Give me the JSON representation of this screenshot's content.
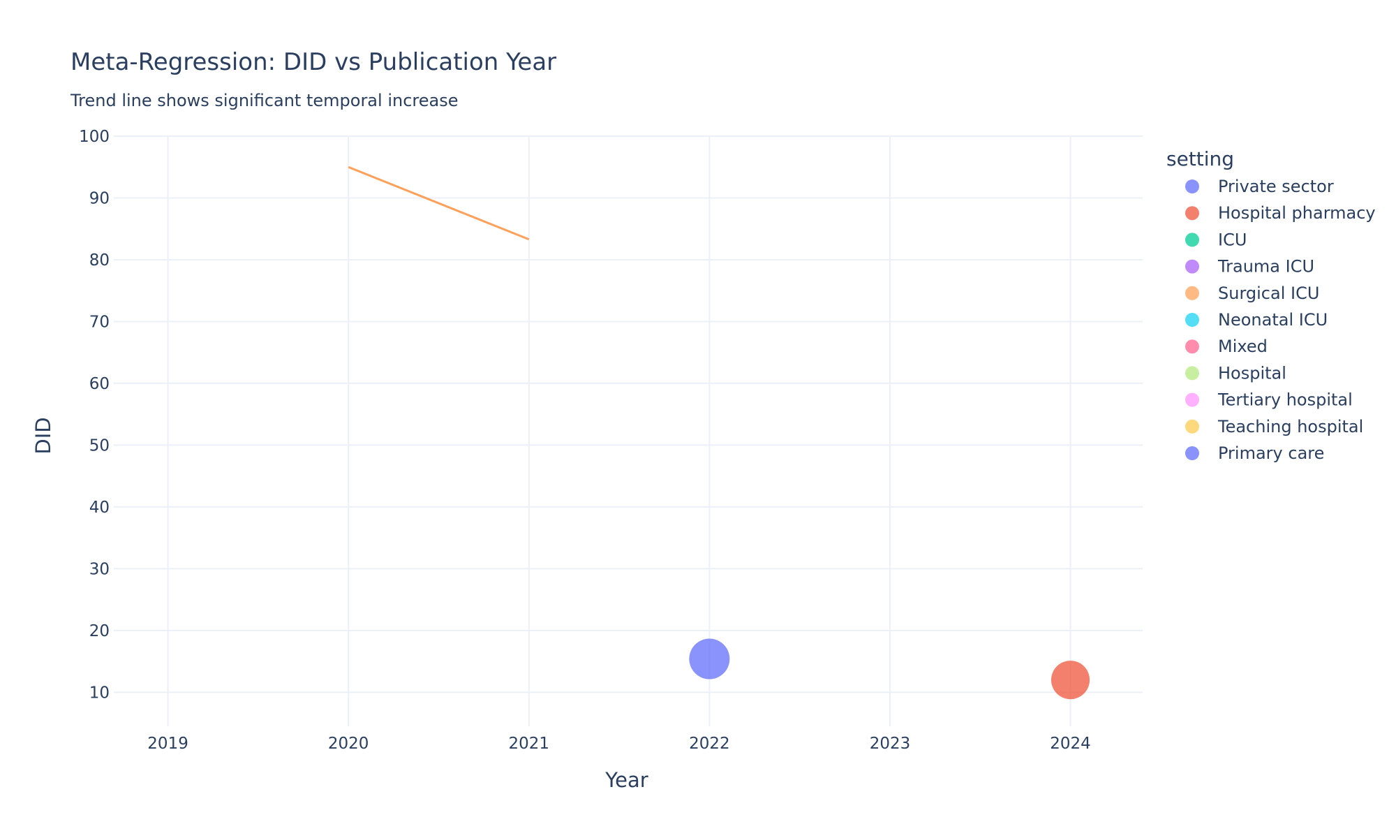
{
  "chart_data": {
    "type": "scatter",
    "title": "Meta-Regression: DID vs Publication Year",
    "subtitle": "Trend line shows significant temporal increase",
    "xlabel": "Year",
    "ylabel": "DID",
    "xlim": [
      2018.7,
      2024.4
    ],
    "ylim": [
      4.5,
      100
    ],
    "x_ticks": [
      2019,
      2020,
      2021,
      2022,
      2023,
      2024
    ],
    "y_ticks": [
      10,
      20,
      30,
      40,
      50,
      60,
      70,
      80,
      90,
      100
    ],
    "grid": true,
    "legend_title": "setting",
    "legend_position": "right",
    "legend": [
      {
        "name": "Private sector",
        "color": "#636efa"
      },
      {
        "name": "Hospital pharmacy",
        "color": "#EF553B"
      },
      {
        "name": "ICU",
        "color": "#00cc96"
      },
      {
        "name": "Trauma ICU",
        "color": "#ab63fa"
      },
      {
        "name": "Surgical ICU",
        "color": "#FFA15A"
      },
      {
        "name": "Neonatal ICU",
        "color": "#19d3f3"
      },
      {
        "name": "Mixed",
        "color": "#FF6692"
      },
      {
        "name": "Hospital",
        "color": "#B6E880"
      },
      {
        "name": "Tertiary hospital",
        "color": "#FF97FF"
      },
      {
        "name": "Teaching hospital",
        "color": "#FECB52"
      },
      {
        "name": "Primary care",
        "color": "#636efa"
      }
    ],
    "points": [
      {
        "x": 2022,
        "y": 15.4,
        "series": "Private sector",
        "color": "#636efa",
        "size": 1.0
      },
      {
        "x": 2024,
        "y": 12.0,
        "series": "Hospital pharmacy",
        "color": "#EF553B",
        "size": 0.76
      }
    ],
    "trend_line": {
      "x": [
        2020,
        2021
      ],
      "y": [
        95.0,
        83.3
      ],
      "color": "#FFA15A"
    }
  }
}
